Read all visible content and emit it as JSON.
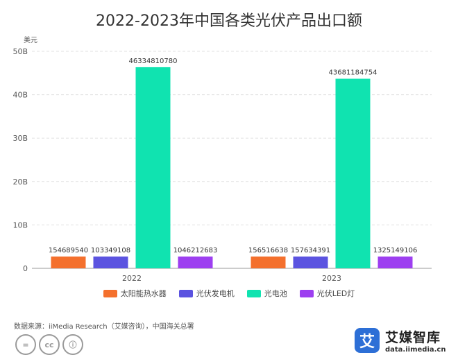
{
  "page": {
    "source": "数据来源：iiMedia Research（艾媒咨询），中国海关总署",
    "cc_icons": [
      "equals-icon",
      "cc-icon",
      "person-icon"
    ],
    "cc_labels": [
      "=",
      "cc",
      "ⓘ"
    ],
    "brand": {
      "name": "艾媒智库",
      "url": "data.iimedia.cn",
      "logo_char": "艾"
    }
  },
  "chart_data": {
    "type": "bar",
    "title": "2022-2023年中国各类光伏产品出口额",
    "ylabel": "美元",
    "xlabel": "",
    "categories": [
      "2022",
      "2023"
    ],
    "ylim": [
      0,
      50000000000
    ],
    "yticks": [
      0,
      10000000000,
      20000000000,
      30000000000,
      40000000000,
      50000000000
    ],
    "ytick_labels": [
      "0",
      "10B",
      "20B",
      "30B",
      "40B",
      "50B"
    ],
    "grid": true,
    "legend_position": "bottom",
    "series": [
      {
        "name": "太阳能热水器",
        "color": "#f4702d",
        "values": [
          154689540,
          156516638
        ],
        "labels": [
          "154689540",
          "156516638"
        ]
      },
      {
        "name": "光伏发电机",
        "color": "#5b53e0",
        "values": [
          103349108,
          157634391
        ],
        "labels": [
          "103349108",
          "157634391"
        ]
      },
      {
        "name": "光电池",
        "color": "#10e3b0",
        "values": [
          46334810780,
          43681184754
        ],
        "labels": [
          "46334810780",
          "43681184754"
        ]
      },
      {
        "name": "光伏LED灯",
        "color": "#9d3ff0",
        "values": [
          1046212683,
          1325149106
        ],
        "labels": [
          "1046212683",
          "1325149106"
        ]
      }
    ]
  }
}
